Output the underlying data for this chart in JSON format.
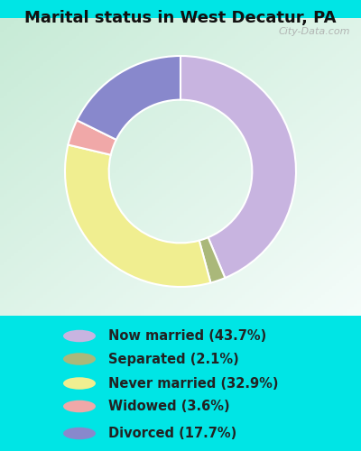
{
  "title": "Marital status in West Decatur, PA",
  "slices": [
    43.7,
    2.1,
    32.9,
    3.6,
    17.7
  ],
  "labels": [
    "Now married (43.7%)",
    "Separated (2.1%)",
    "Never married (32.9%)",
    "Widowed (3.6%)",
    "Divorced (17.7%)"
  ],
  "colors": [
    "#c8b4e0",
    "#aab87a",
    "#f0ee90",
    "#f0a8a8",
    "#8888cc"
  ],
  "bg_cyan": "#00e5e5",
  "chart_bg_tl": "#d0ede0",
  "chart_bg_tr": "#e8f0f0",
  "chart_bg_bl": "#c0e8d0",
  "chart_bg_br": "#e0f0e8",
  "title_fontsize": 13,
  "legend_fontsize": 10.5,
  "watermark": "City-Data.com",
  "wedge_order": [
    0,
    1,
    2,
    3,
    4
  ],
  "donut_width": 0.38
}
